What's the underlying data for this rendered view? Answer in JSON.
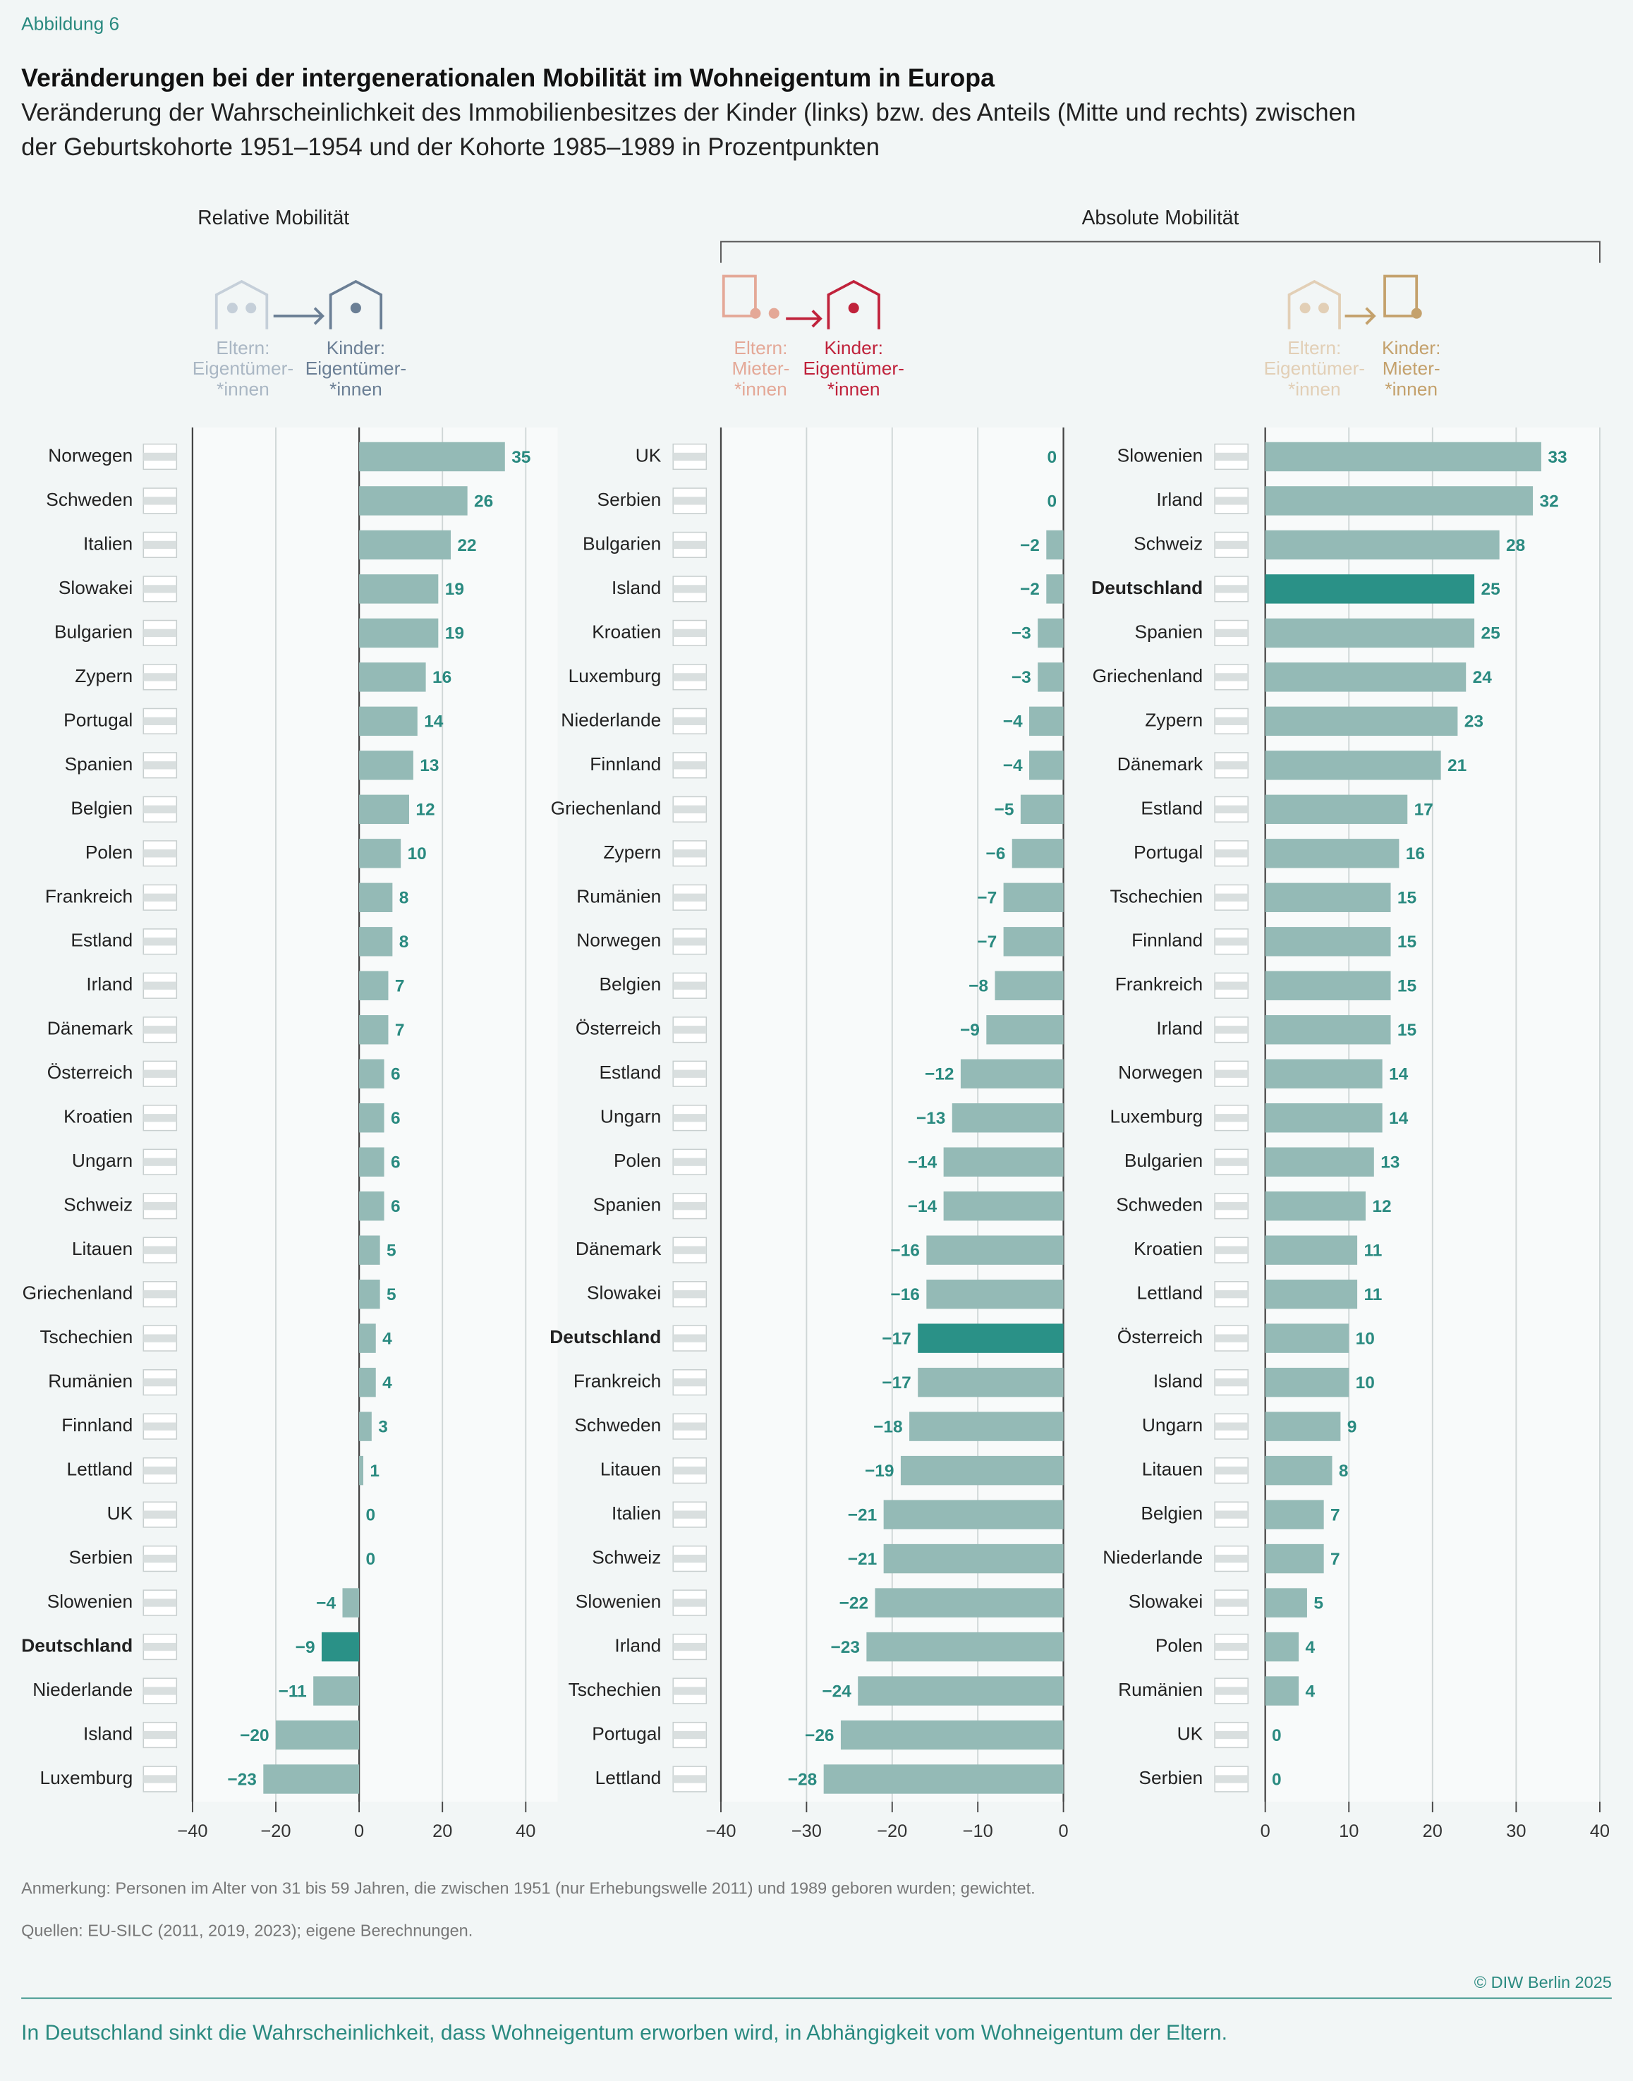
{
  "figure_label": "Abbildung 6",
  "title": "Veränderungen bei der intergenerationalen Mobilität im Wohneigentum in Europa",
  "subtitle": [
    "Veränderung der Wahrscheinlichkeit des Immobilienbesitzes der Kinder (links) bzw. des Anteils (Mitte und rechts) zwischen",
    "der Geburtskohorte 1951–1954 und der Kohorte 1985–1989 in Prozentpunkten"
  ],
  "headings": [
    "Relative Mobilität",
    "Absolute Mobilität"
  ],
  "notes": [
    "Anmerkung: Personen im Alter von 31 bis 59 Jahren, die zwischen 1951 (nur Erhebungswelle 2011) und 1989 geboren wurden; gewichtet.",
    "Quellen: EU-SILC (2011, 2019, 2023); eigene Berechnungen."
  ],
  "copyright": "© DIW Berlin 2025",
  "footer": "In Deutschland sinkt die Wahrscheinlichkeit, dass Wohneigentum erworben wird, in Abhängigkeit vom Wohneigentum der Eltern.",
  "chart_data": [
    {
      "type": "bar",
      "orientation": "horizontal",
      "parents_label": {
        "lines": [
          "Eltern:",
          "Eigentümer-",
          "*innen"
        ],
        "color": "#aab7c4"
      },
      "children_label": {
        "lines": [
          "Kinder:",
          "Eigentümer-",
          "*innen"
        ],
        "color": "#6b7f95"
      },
      "categories": [
        "Norwegen",
        "Schweden",
        "Italien",
        "Slowakei",
        "Bulgarien",
        "Zypern",
        "Portugal",
        "Spanien",
        "Belgien",
        "Polen",
        "Frankreich",
        "Estland",
        "Irland",
        "Dänemark",
        "Österreich",
        "Kroatien",
        "Ungarn",
        "Schweiz",
        "Litauen",
        "Griechenland",
        "Tschechien",
        "Rumänien",
        "Finnland",
        "Lettland",
        "UK",
        "Serbien",
        "Slowenien",
        "Deutschland",
        "Niederlande",
        "Island",
        "Luxemburg"
      ],
      "values": [
        35,
        26,
        22,
        19,
        19,
        16,
        14,
        13,
        12,
        10,
        8,
        8,
        7,
        7,
        6,
        6,
        6,
        6,
        5,
        5,
        4,
        4,
        3,
        1,
        0,
        0,
        -4,
        -9,
        -11,
        -20,
        -23
      ],
      "value_labels": [
        "35",
        "26",
        "22",
        "19",
        "19",
        "16",
        "14",
        "13",
        "12",
        "10",
        "8",
        "8",
        "7",
        "7",
        "6",
        "6",
        "6",
        "6",
        "5",
        "5",
        "4",
        "4",
        "3",
        "1",
        "0",
        "0",
        "−4",
        "−9",
        "−11",
        "−20",
        "−23"
      ],
      "color": "#94bab6",
      "colors": [
        "#94bab6",
        "#94bab6",
        "#94bab6",
        "#94bab6",
        "#94bab6",
        "#94bab6",
        "#94bab6",
        "#94bab6",
        "#94bab6",
        "#94bab6",
        "#94bab6",
        "#94bab6",
        "#94bab6",
        "#94bab6",
        "#94bab6",
        "#94bab6",
        "#94bab6",
        "#94bab6",
        "#94bab6",
        "#94bab6",
        "#94bab6",
        "#94bab6",
        "#94bab6",
        "#94bab6",
        "#94bab6",
        "#94bab6",
        "#94bab6",
        "#2a9187",
        "#94bab6",
        "#94bab6",
        "#94bab6"
      ],
      "xlim": [
        -40,
        40
      ],
      "xticks": [
        {
          "value": -40,
          "label": "−40"
        },
        {
          "value": -20,
          "label": "−20"
        },
        0,
        20,
        40
      ],
      "grid": true
    },
    {
      "type": "bar",
      "orientation": "horizontal",
      "parents_label": {
        "lines": [
          "Eltern:",
          "Mieter-",
          "*innen"
        ],
        "color": "#e4a897"
      },
      "children_label": {
        "lines": [
          "Kinder:",
          "Eigentümer-",
          "*innen"
        ],
        "color": "#c0223b"
      },
      "categories": [
        "UK",
        "Serbien",
        "Bulgarien",
        "Island",
        "Kroatien",
        "Luxemburg",
        "Niederlande",
        "Finnland",
        "Griechenland",
        "Zypern",
        "Rumänien",
        "Norwegen",
        "Belgien",
        "Österreich",
        "Estland",
        "Ungarn",
        "Polen",
        "Spanien",
        "Dänemark",
        "Slowakei",
        "Deutschland",
        "Frankreich",
        "Schweden",
        "Litauen",
        "Italien",
        "Schweiz",
        "Slowenien",
        "Irland",
        "Tschechien",
        "Portugal",
        "Lettland"
      ],
      "values": [
        0,
        0,
        -2,
        -2,
        -3,
        -3,
        -4,
        -4,
        -5,
        -6,
        -7,
        -7,
        -8,
        -9,
        -12,
        -13,
        -14,
        -14,
        -16,
        -16,
        -17,
        -17,
        -18,
        -19,
        -21,
        -21,
        -22,
        -23,
        -24,
        -26,
        -28
      ],
      "value_labels": [
        "0",
        "0",
        "−2",
        "−2",
        "−3",
        "−3",
        "−4",
        "−4",
        "−5",
        "−6",
        "−7",
        "−7",
        "−8",
        "−9",
        "−12",
        "−13",
        "−14",
        "−14",
        "−16",
        "−16",
        "−17",
        "−17",
        "−18",
        "−19",
        "−21",
        "−21",
        "−22",
        "−23",
        "−24",
        "−26",
        "−28"
      ],
      "color": "#94bab6",
      "colors": [
        "#94bab6",
        "#94bab6",
        "#94bab6",
        "#94bab6",
        "#94bab6",
        "#94bab6",
        "#94bab6",
        "#94bab6",
        "#94bab6",
        "#94bab6",
        "#94bab6",
        "#94bab6",
        "#94bab6",
        "#94bab6",
        "#94bab6",
        "#94bab6",
        "#94bab6",
        "#94bab6",
        "#94bab6",
        "#94bab6",
        "#2a9187",
        "#94bab6",
        "#94bab6",
        "#94bab6",
        "#94bab6",
        "#94bab6",
        "#94bab6",
        "#94bab6",
        "#94bab6",
        "#94bab6",
        "#94bab6"
      ],
      "xlim": [
        -40,
        0
      ],
      "xticks": [
        {
          "value": -40,
          "label": "−40"
        },
        {
          "value": -30,
          "label": "−30"
        },
        {
          "value": -20,
          "label": "−20"
        },
        {
          "value": -10,
          "label": "−10"
        },
        0
      ],
      "grid": true
    },
    {
      "type": "bar",
      "orientation": "horizontal",
      "parents_label": {
        "lines": [
          "Eltern:",
          "Eigentümer-",
          "*innen"
        ],
        "color": "#e2cfb6"
      },
      "children_label": {
        "lines": [
          "Kinder:",
          "Mieter-",
          "*innen"
        ],
        "color": "#c4a16c"
      },
      "categories": [
        "Slowenien",
        "Irland",
        "Schweiz",
        "Deutschland",
        "Spanien",
        "Griechenland",
        "Zypern",
        "Dänemark",
        "Estland",
        "Portugal",
        "Tschechien",
        "Finnland",
        "Frankreich",
        "Irland",
        "Norwegen",
        "Luxemburg",
        "Bulgarien",
        "Schweden",
        "Kroatien",
        "Lettland",
        "Österreich",
        "Island",
        "Ungarn",
        "Litauen",
        "Belgien",
        "Niederlande",
        "Slowakei",
        "Polen",
        "Rumänien",
        "UK",
        "Serbien"
      ],
      "values": [
        33,
        32,
        28,
        25,
        25,
        24,
        23,
        21,
        17,
        16,
        15,
        15,
        15,
        15,
        14,
        14,
        13,
        12,
        11,
        11,
        10,
        10,
        9,
        8,
        7,
        7,
        5,
        4,
        4,
        0,
        0
      ],
      "color": "#94bab6",
      "colors": [
        "#94bab6",
        "#94bab6",
        "#94bab6",
        "#2a9187",
        "#94bab6",
        "#94bab6",
        "#94bab6",
        "#94bab6",
        "#94bab6",
        "#94bab6",
        "#94bab6",
        "#94bab6",
        "#94bab6",
        "#94bab6",
        "#94bab6",
        "#94bab6",
        "#94bab6",
        "#94bab6",
        "#94bab6",
        "#94bab6",
        "#94bab6",
        "#94bab6",
        "#94bab6",
        "#94bab6",
        "#94bab6",
        "#94bab6",
        "#94bab6",
        "#94bab6",
        "#94bab6",
        "#94bab6",
        "#94bab6"
      ],
      "xlim": [
        0,
        40
      ],
      "xticks": [
        0,
        10,
        20,
        30,
        40
      ],
      "grid": true
    }
  ]
}
